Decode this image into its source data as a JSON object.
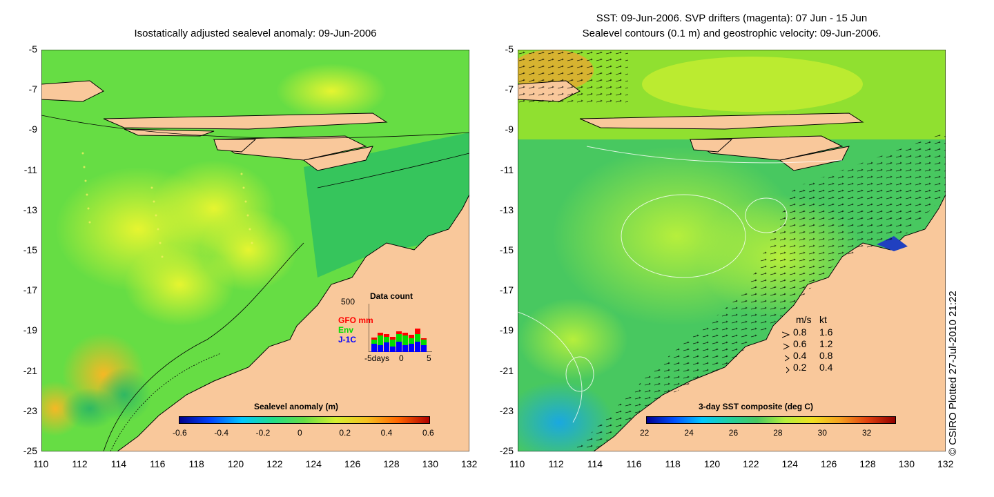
{
  "left_panel": {
    "title": "Isostatically adjusted sealevel anomaly: 09-Jun-2006",
    "y_ticks": [
      "-5",
      "-7",
      "-9",
      "-11",
      "-13",
      "-15",
      "-17",
      "-19",
      "-21",
      "-23",
      "-25"
    ],
    "x_ticks": [
      "110",
      "112",
      "114",
      "116",
      "118",
      "120",
      "122",
      "124",
      "126",
      "128",
      "130",
      "132"
    ],
    "colorbar": {
      "title": "Sealevel anomaly (m)",
      "labels": [
        "-0.6",
        "-0.4",
        "-0.2",
        "0",
        "0.2",
        "0.4",
        "0.6"
      ]
    },
    "data_count": {
      "title": "Data count",
      "ymax_label": "500",
      "series_labels": {
        "gfo": "GFO mm",
        "env": "Env",
        "j1c": "J-1C"
      },
      "x_labels": {
        "left": "-5days",
        "mid": "0",
        "right": "5"
      },
      "colors": {
        "gfo": "#ff0000",
        "env": "#00dd00",
        "j1c": "#0000ff"
      }
    }
  },
  "right_panel": {
    "title_line1": "SST: 09-Jun-2006. SVP drifters (magenta): 07 Jun - 15 Jun",
    "title_line2": "Sealevel contours (0.1 m) and geostrophic velocity: 09-Jun-2006.",
    "y_ticks": [
      "-5",
      "-7",
      "-9",
      "-11",
      "-13",
      "-15",
      "-17",
      "-19",
      "-21",
      "-23",
      "-25"
    ],
    "x_ticks": [
      "110",
      "112",
      "114",
      "116",
      "118",
      "120",
      "122",
      "124",
      "126",
      "128",
      "130",
      "132"
    ],
    "colorbar": {
      "title": "3-day SST composite (deg C)",
      "labels": [
        "22",
        "24",
        "26",
        "28",
        "30",
        "32"
      ]
    },
    "velocity_legend": {
      "header_ms": "m/s",
      "header_kt": "kt",
      "rows": [
        {
          "ms": "0.8",
          "kt": "1.6"
        },
        {
          "ms": "0.6",
          "kt": "1.2"
        },
        {
          "ms": "0.4",
          "kt": "0.8"
        },
        {
          "ms": "0.2",
          "kt": "0.4"
        }
      ]
    }
  },
  "copyright": "© CSIRO Plotted 27-Jul-2010 21:22",
  "colors": {
    "land": "#f9c89b",
    "ocean_mid": "#4cd84c",
    "ocean_anom": "#b6ef3c"
  }
}
